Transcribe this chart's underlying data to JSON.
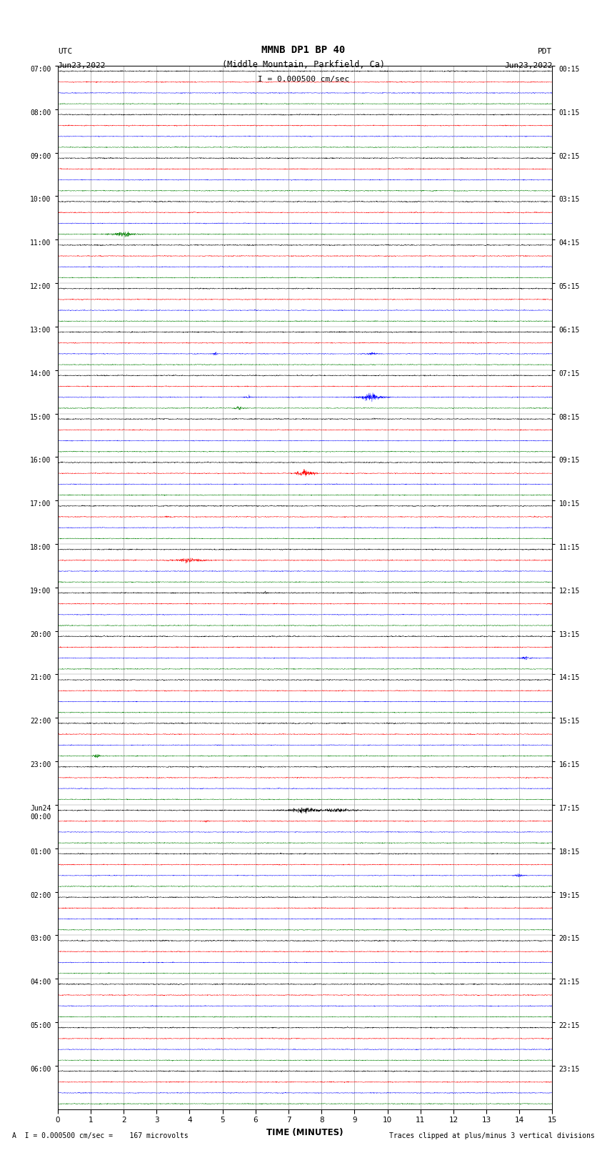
{
  "title_line1": "MMNB DP1 BP 40",
  "title_line2": "(Middle Mountain, Parkfield, Ca)",
  "scale_text": "I = 0.000500 cm/sec",
  "left_header": "UTC",
  "left_date": "Jun23,2022",
  "right_header": "PDT",
  "right_date": "Jun23,2022",
  "xlabel": "TIME (MINUTES)",
  "footer_left": "A  I = 0.000500 cm/sec =    167 microvolts",
  "footer_right": "Traces clipped at plus/minus 3 vertical divisions",
  "xmin": 0,
  "xmax": 15,
  "bg_color": "#ffffff",
  "trace_colors": [
    "black",
    "red",
    "blue",
    "green"
  ],
  "utc_labels": [
    "07:00",
    "08:00",
    "09:00",
    "10:00",
    "11:00",
    "12:00",
    "13:00",
    "14:00",
    "15:00",
    "16:00",
    "17:00",
    "18:00",
    "19:00",
    "20:00",
    "21:00",
    "22:00",
    "23:00",
    "Jun24\n00:00",
    "01:00",
    "02:00",
    "03:00",
    "04:00",
    "05:00",
    "06:00"
  ],
  "pdt_labels": [
    "00:15",
    "01:15",
    "02:15",
    "03:15",
    "04:15",
    "05:15",
    "06:15",
    "07:15",
    "08:15",
    "09:15",
    "10:15",
    "11:15",
    "12:15",
    "13:15",
    "14:15",
    "15:15",
    "16:15",
    "17:15",
    "18:15",
    "19:15",
    "20:15",
    "21:15",
    "22:15",
    "23:15"
  ],
  "n_rows": 24,
  "traces_per_row": 4,
  "noise_amplitude": 0.032,
  "dt": 0.005,
  "events": [
    {
      "row": 3,
      "color": "green",
      "t": 2.0,
      "amp": 0.55,
      "dur": 60
    },
    {
      "row": 6,
      "color": "blue",
      "t": 4.8,
      "amp": 0.28,
      "dur": 20
    },
    {
      "row": 6,
      "color": "blue",
      "t": 9.5,
      "amp": 0.35,
      "dur": 25
    },
    {
      "row": 7,
      "color": "blue",
      "t": 5.8,
      "amp": 0.3,
      "dur": 18
    },
    {
      "row": 7,
      "color": "blue",
      "t": 9.5,
      "amp": 0.9,
      "dur": 50
    },
    {
      "row": 7,
      "color": "green",
      "t": 5.5,
      "amp": 0.45,
      "dur": 22
    },
    {
      "row": 9,
      "color": "red",
      "t": 7.5,
      "amp": 0.65,
      "dur": 40
    },
    {
      "row": 10,
      "color": "red",
      "t": 3.3,
      "amp": 0.18,
      "dur": 12
    },
    {
      "row": 11,
      "color": "red",
      "t": 4.0,
      "amp": 0.55,
      "dur": 60
    },
    {
      "row": 12,
      "color": "black",
      "t": 6.3,
      "amp": 0.28,
      "dur": 20
    },
    {
      "row": 13,
      "color": "blue",
      "t": 14.2,
      "amp": 0.4,
      "dur": 30
    },
    {
      "row": 15,
      "color": "green",
      "t": 1.2,
      "amp": 0.45,
      "dur": 18
    },
    {
      "row": 17,
      "color": "black",
      "t": 7.5,
      "amp": 0.7,
      "dur": 80
    },
    {
      "row": 17,
      "color": "black",
      "t": 8.5,
      "amp": 0.55,
      "dur": 60
    },
    {
      "row": 17,
      "color": "red",
      "t": 4.5,
      "amp": 0.2,
      "dur": 15
    },
    {
      "row": 18,
      "color": "blue",
      "t": 14.0,
      "amp": 0.35,
      "dur": 20
    }
  ]
}
